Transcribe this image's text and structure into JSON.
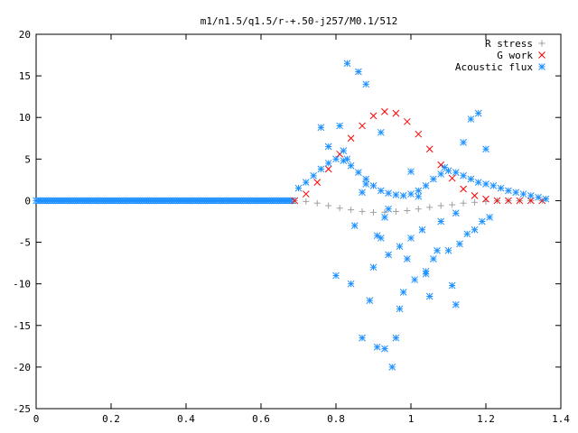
{
  "chart_data": {
    "type": "scatter",
    "title": "m1/n1.5/q1.5/r-+.50-j257/M0.1/512",
    "xlabel": "",
    "ylabel": "",
    "xlim": [
      0,
      1.4
    ],
    "ylim": [
      -25,
      20
    ],
    "xticks": [
      "0",
      "0.2",
      "0.4",
      "0.6",
      "0.8",
      "1",
      "1.2",
      "1.4"
    ],
    "yticks": [
      "20",
      "15",
      "10",
      "5",
      "0",
      "-5",
      "-10",
      "-15",
      "-20",
      "-25"
    ],
    "grid": false,
    "legend_position": "top-right",
    "series": [
      {
        "name": "R stress",
        "marker": "plus",
        "color": "#a0a0a0",
        "x": [
          0.69,
          0.72,
          0.75,
          0.78,
          0.81,
          0.84,
          0.87,
          0.9,
          0.93,
          0.96,
          0.99,
          1.02,
          1.05,
          1.08,
          1.11,
          1.14,
          1.17,
          1.2,
          1.23,
          1.26,
          1.29,
          1.32,
          1.35
        ],
        "values": [
          0,
          -0.1,
          -0.3,
          -0.6,
          -0.9,
          -1.1,
          -1.3,
          -1.4,
          -1.4,
          -1.3,
          -1.2,
          -1.0,
          -0.8,
          -0.6,
          -0.5,
          -0.3,
          -0.2,
          -0.1,
          0,
          0,
          0,
          0,
          0
        ]
      },
      {
        "name": "G work",
        "marker": "cross",
        "color": "#ff0000",
        "x": [
          0.69,
          0.72,
          0.75,
          0.78,
          0.81,
          0.84,
          0.87,
          0.9,
          0.93,
          0.96,
          0.99,
          1.02,
          1.05,
          1.08,
          1.11,
          1.14,
          1.17,
          1.2,
          1.23,
          1.26,
          1.29,
          1.32,
          1.35
        ],
        "values": [
          0,
          0.8,
          2.2,
          3.8,
          5.6,
          7.5,
          9.0,
          10.2,
          10.7,
          10.5,
          9.5,
          8.0,
          6.2,
          4.3,
          2.7,
          1.4,
          0.6,
          0.2,
          0,
          0,
          0,
          0,
          0
        ]
      },
      {
        "name": "Acoustic flux",
        "marker": "star",
        "color": "#1e90ff",
        "x": [
          0.7,
          0.72,
          0.74,
          0.76,
          0.78,
          0.8,
          0.82,
          0.84,
          0.86,
          0.88,
          0.9,
          0.92,
          0.94,
          0.96,
          0.98,
          1.0,
          1.02,
          1.04,
          1.06,
          1.08,
          1.1,
          1.12,
          1.14,
          1.16,
          1.18,
          1.2,
          1.22,
          1.24,
          1.26,
          1.28,
          1.3,
          1.32,
          1.34,
          1.36,
          0.83,
          0.86,
          0.88,
          0.81,
          0.92,
          0.95,
          0.93,
          0.87,
          0.91,
          0.96,
          0.89,
          0.98,
          1.01,
          1.04,
          1.06,
          1.1,
          1.13,
          1.15,
          1.17,
          1.19,
          1.21,
          0.8,
          0.84,
          0.9,
          0.94,
          0.97,
          1.0,
          1.03,
          1.08,
          1.12,
          0.85,
          0.92,
          0.99,
          1.05,
          1.11,
          1.16,
          0.82,
          0.88,
          0.94,
          1.02,
          1.09,
          1.14,
          0.78,
          0.87,
          0.93,
          1.0,
          1.07,
          1.18,
          0.76,
          0.83,
          0.91,
          0.97,
          1.04,
          1.12,
          1.2
        ],
        "values": [
          1.5,
          2.2,
          3.0,
          3.8,
          4.5,
          5.0,
          4.8,
          4.2,
          3.4,
          2.6,
          1.8,
          1.2,
          0.9,
          0.7,
          0.6,
          0.8,
          1.2,
          1.8,
          2.6,
          3.2,
          3.6,
          3.4,
          3.0,
          2.6,
          2.2,
          2.0,
          1.8,
          1.5,
          1.2,
          1.0,
          0.8,
          0.6,
          0.4,
          0.2,
          16.5,
          15.5,
          14.0,
          9.0,
          8.2,
          -20.0,
          -17.8,
          -16.5,
          -17.6,
          -16.5,
          -12.0,
          -11.0,
          -9.5,
          -8.5,
          -7.0,
          -6.0,
          -5.2,
          -4.0,
          -3.5,
          -2.5,
          -2.0,
          -9.0,
          -10.0,
          -8.0,
          -6.5,
          -5.5,
          -4.5,
          -3.5,
          -2.5,
          -1.5,
          -3.0,
          -4.5,
          -7.0,
          -11.5,
          -10.2,
          9.8,
          6.0,
          2.0,
          -1.0,
          0.5,
          4.0,
          7.0,
          6.5,
          1.0,
          -2.0,
          3.5,
          -6.0,
          10.5,
          8.8,
          5.0,
          -4.2,
          -13.0,
          -8.8,
          -12.5,
          6.2
        ]
      }
    ]
  }
}
